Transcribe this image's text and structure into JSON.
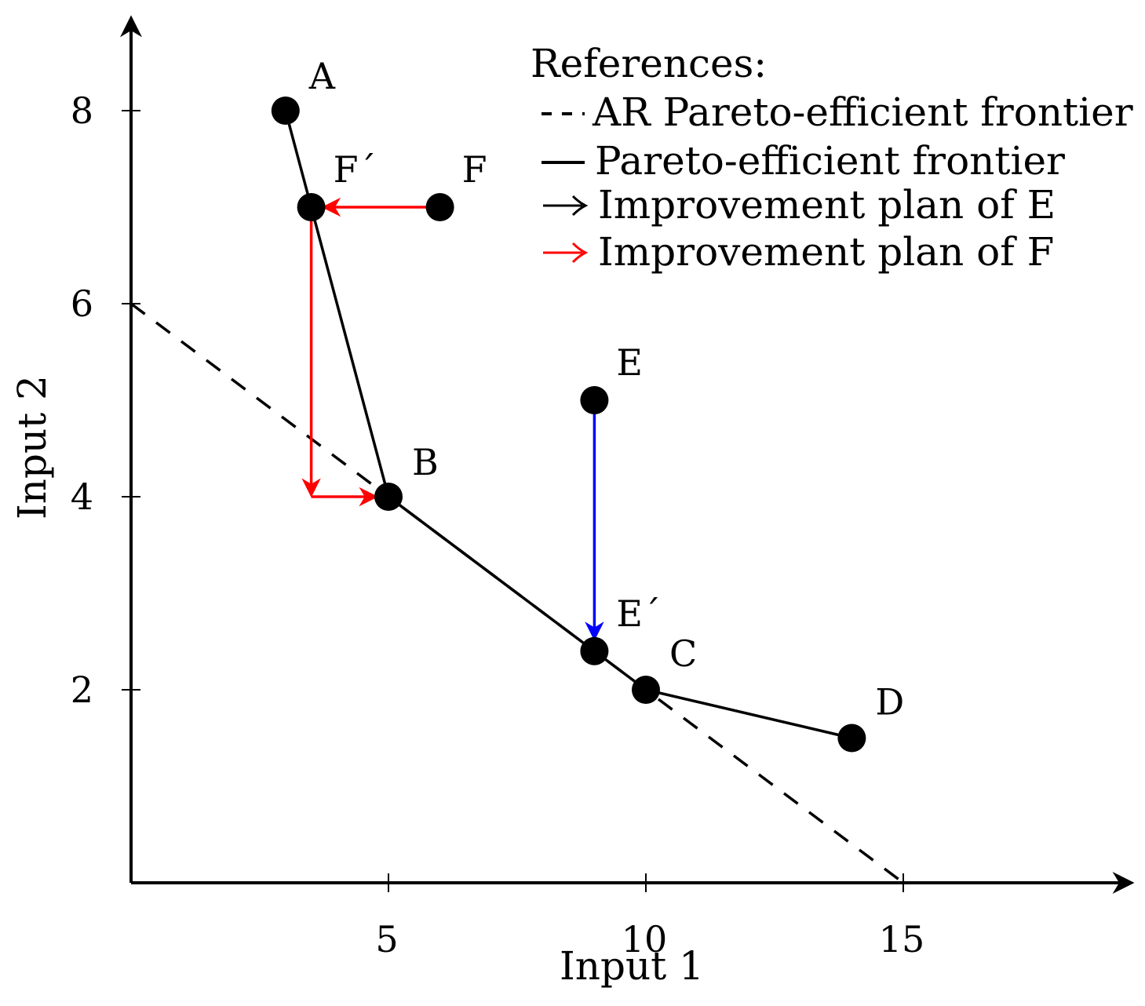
{
  "chart_data": {
    "type": "line",
    "xlabel": "Input 1",
    "ylabel": "Input 2",
    "xlim": [
      0,
      19.5
    ],
    "ylim": [
      0,
      8.8
    ],
    "x_ticks": [
      {
        "value": 5,
        "label": "5"
      },
      {
        "value": 10,
        "label": "10"
      },
      {
        "value": 15,
        "label": "15"
      }
    ],
    "y_ticks": [
      {
        "value": 2,
        "label": "2"
      },
      {
        "value": 4,
        "label": "4"
      },
      {
        "value": 6,
        "label": "6"
      },
      {
        "value": 8,
        "label": "8"
      }
    ],
    "grid": false,
    "points": [
      {
        "id": "A",
        "label": "A",
        "x": 3,
        "y": 8
      },
      {
        "id": "B",
        "label": "B",
        "x": 5,
        "y": 4
      },
      {
        "id": "C",
        "label": "C",
        "x": 10,
        "y": 2
      },
      {
        "id": "D",
        "label": "D",
        "x": 14,
        "y": 1.5
      },
      {
        "id": "E",
        "label": "E",
        "x": 9,
        "y": 5
      },
      {
        "id": "E-prime",
        "label": "E´",
        "x": 9,
        "y": 2.4
      },
      {
        "id": "F",
        "label": "F",
        "x": 6,
        "y": 7
      },
      {
        "id": "F-prime",
        "label": "F´",
        "x": 3.5,
        "y": 7
      }
    ],
    "series": [
      {
        "name": "AR Pareto-efficient frontier",
        "style": "dashed",
        "color": "#000000",
        "x": [
          0,
          15
        ],
        "y": [
          6,
          0
        ]
      },
      {
        "name": "Pareto-efficient frontier",
        "style": "solid",
        "color": "#000000",
        "x": [
          3,
          3.5,
          5,
          9,
          10,
          14
        ],
        "y": [
          8,
          7,
          4,
          2.4,
          2,
          1.5
        ]
      }
    ],
    "arrows": [
      {
        "name": "Improvement plan of E",
        "color": "#0000ff",
        "from": [
          9,
          5
        ],
        "to": [
          9,
          2.4
        ]
      },
      {
        "name": "Improvement plan of F",
        "color": "#ff0000",
        "from": [
          6,
          7
        ],
        "to": [
          3.5,
          7
        ]
      },
      {
        "name": "Improvement plan of F",
        "color": "#ff0000",
        "from": [
          3.5,
          7
        ],
        "to": [
          3.5,
          4
        ]
      },
      {
        "name": "Improvement plan of F",
        "color": "#ff0000",
        "from": [
          3.5,
          4
        ],
        "to": [
          5,
          4
        ]
      }
    ],
    "legend": {
      "title": "References:",
      "placement": "top-right",
      "entries": [
        {
          "marker": "- -",
          "text": "AR Pareto-efficient frontier",
          "color": "#000000"
        },
        {
          "marker": "—",
          "text": "Pareto-efficient frontier",
          "color": "#000000"
        },
        {
          "marker": "→",
          "text": "Improvement plan of E",
          "color": "#000000"
        },
        {
          "marker": "→",
          "text": "Improvement plan of F",
          "color": "#ff0000"
        }
      ]
    }
  }
}
